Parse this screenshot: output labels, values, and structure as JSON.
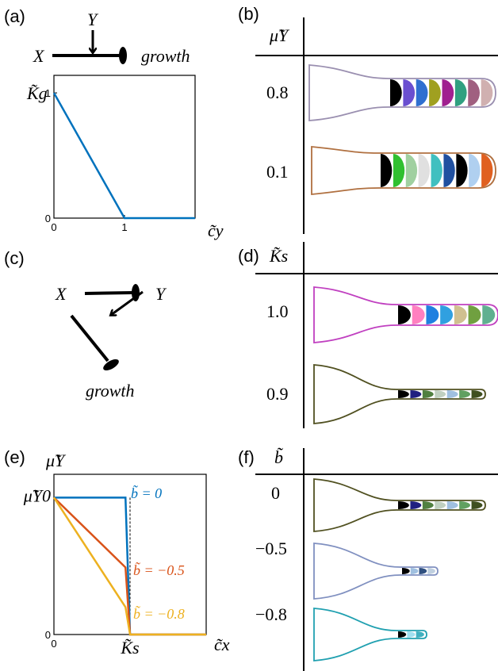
{
  "panels": {
    "a": {
      "label": "(a)",
      "nodes": [
        "X",
        "Y",
        "growth"
      ]
    },
    "b": {
      "label": "(b)",
      "header": "μ̃Y",
      "rows": [
        "0.8",
        "0.1"
      ]
    },
    "c": {
      "label": "(c)",
      "nodes": [
        "X",
        "Y",
        "growth"
      ]
    },
    "d": {
      "label": "(d)",
      "header": "K̃s",
      "rows": [
        "1.0",
        "0.9"
      ]
    },
    "e": {
      "label": "(e)"
    },
    "f": {
      "label": "(f)",
      "header": "b̃",
      "rows": [
        "0",
        "−0.5",
        "−0.8"
      ]
    }
  },
  "chart_data": [
    {
      "type": "line",
      "ylabel": "K̃g",
      "xlabel": "c̃y",
      "x": [
        0,
        1,
        2
      ],
      "xlim": [
        0,
        2
      ],
      "ylim": [
        0,
        1.14
      ],
      "xticks": [
        0,
        1
      ],
      "yticks": [
        0,
        1
      ],
      "series": [
        {
          "color": "#0072bd",
          "values": [
            1,
            0,
            0
          ]
        }
      ]
    },
    {
      "type": "line",
      "ylabel": "μ̃Y",
      "xlabel": "c̃x",
      "x": [
        0,
        0.94,
        1.0,
        2
      ],
      "xlim": [
        0,
        2
      ],
      "ylim": [
        0,
        1.17
      ],
      "xticks": [
        0,
        {
          "value": 1,
          "label": "K̃s"
        }
      ],
      "yticks": [
        0,
        {
          "value": 1,
          "label": "μ̃Y0"
        }
      ],
      "series": [
        {
          "name": "b̃ = 0",
          "color": "#0072bd",
          "values": [
            1,
            1,
            0,
            0
          ]
        },
        {
          "name": "b̃ = −0.5",
          "color": "#d95319",
          "values": [
            1,
            0.49,
            0,
            0
          ]
        },
        {
          "name": "b̃ = −0.8",
          "color": "#edb120",
          "values": [
            1,
            0.2,
            0,
            0
          ]
        }
      ]
    }
  ]
}
